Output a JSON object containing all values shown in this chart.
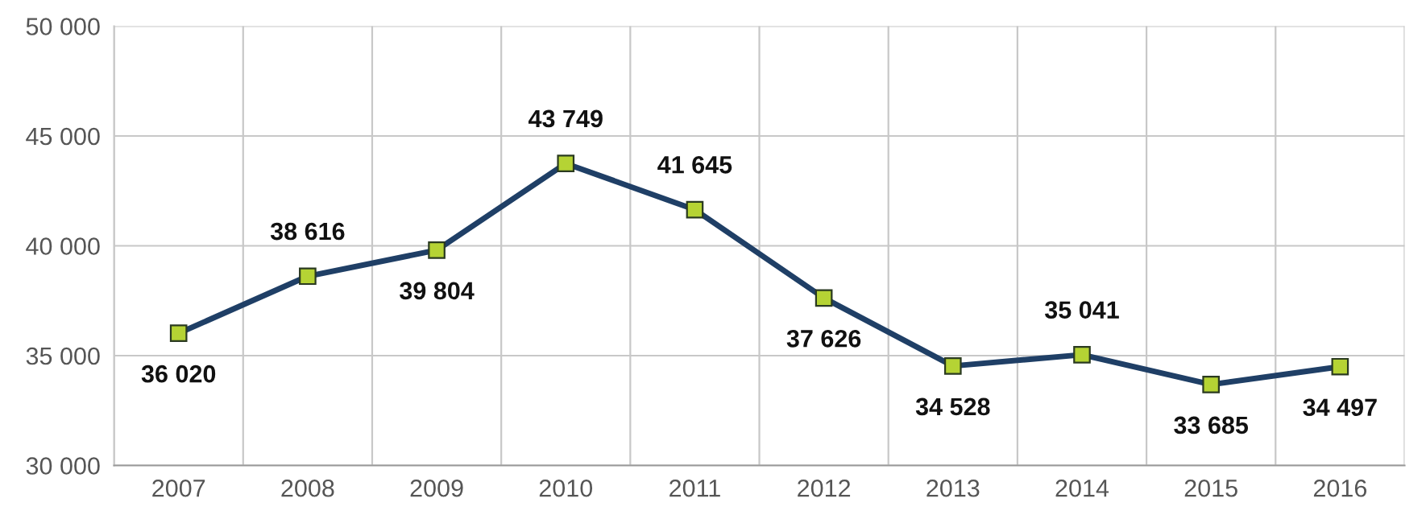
{
  "chart_data": {
    "type": "line",
    "categories": [
      "2007",
      "2008",
      "2009",
      "2010",
      "2011",
      "2012",
      "2013",
      "2014",
      "2015",
      "2016"
    ],
    "series": [
      {
        "color": "#1f3f66",
        "values": [
          36020,
          38616,
          39804,
          43749,
          41645,
          37626,
          34528,
          35041,
          33685,
          34497
        ],
        "value_labels": [
          "36 020",
          "38 616",
          "39 804",
          "43 749",
          "41 645",
          "37 626",
          "34 528",
          "35 041",
          "33 685",
          "34 497"
        ]
      }
    ],
    "marker": "square",
    "line_style": "solid",
    "ylim": [
      30000,
      50000
    ],
    "yticks": [
      {
        "value": 30000,
        "label": "30 000"
      },
      {
        "value": 35000,
        "label": "35 000"
      },
      {
        "value": 40000,
        "label": "40 000"
      },
      {
        "value": 45000,
        "label": "45 000"
      },
      {
        "value": 50000,
        "label": "50 000"
      }
    ],
    "grid": true,
    "legend": false
  }
}
